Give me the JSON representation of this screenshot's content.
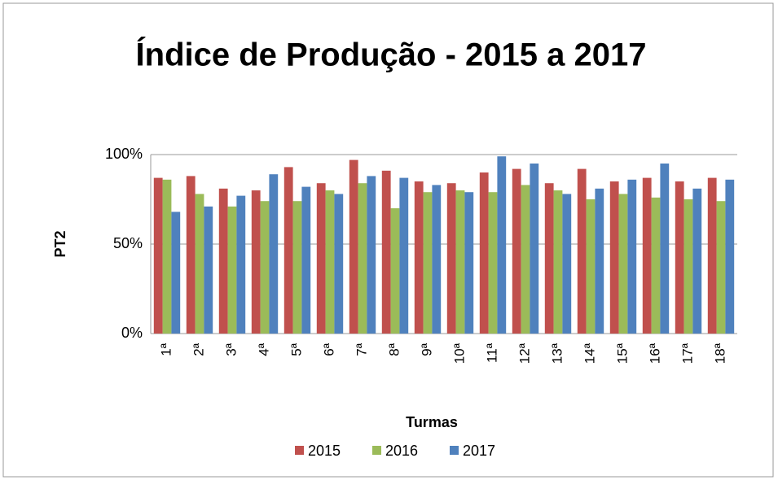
{
  "chart_data": {
    "type": "bar",
    "title": "Índice de Produção - 2015 a 2017",
    "x_label": "Turmas",
    "y_label": "PT2",
    "categories": [
      "1ª",
      "2ª",
      "3ª",
      "4ª",
      "5ª",
      "6ª",
      "7ª",
      "8ª",
      "9ª",
      "10ª",
      "11ª",
      "12ª",
      "13ª",
      "14ª",
      "15ª",
      "16ª",
      "17ª",
      "18ª"
    ],
    "series": [
      {
        "name": "2015",
        "color": "#c0504d",
        "values": [
          87,
          88,
          81,
          80,
          93,
          84,
          97,
          91,
          85,
          84,
          90,
          92,
          84,
          92,
          85,
          87,
          85,
          87
        ]
      },
      {
        "name": "2016",
        "color": "#9bbb59",
        "values": [
          86,
          78,
          71,
          74,
          74,
          80,
          84,
          70,
          79,
          80,
          79,
          83,
          80,
          75,
          78,
          76,
          75,
          74
        ]
      },
      {
        "name": "2017",
        "color": "#4f81bd",
        "values": [
          68,
          71,
          77,
          89,
          82,
          78,
          88,
          87,
          83,
          79,
          99,
          95,
          78,
          81,
          86,
          95,
          81,
          86
        ]
      }
    ],
    "ylim": [
      0,
      100
    ],
    "yticks": [
      {
        "value": 0,
        "label": "0%"
      },
      {
        "value": 50,
        "label": "50%"
      },
      {
        "value": 100,
        "label": "100%"
      }
    ],
    "grid": true,
    "legend": "bottom"
  }
}
